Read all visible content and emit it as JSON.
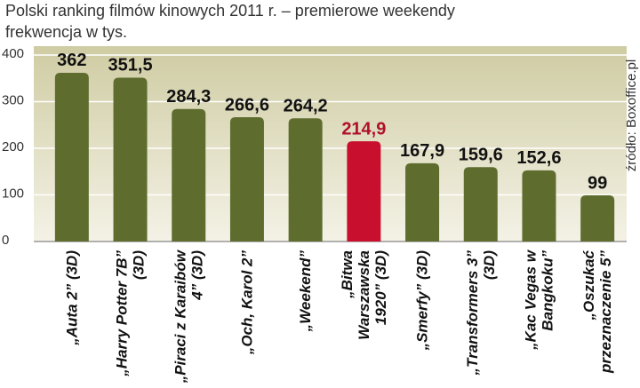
{
  "chart_data": {
    "type": "bar",
    "title": "Polski ranking filmów kinowych 2011 r. – premierowe weekendy",
    "subtitle": "frekwencja w tys.",
    "source": "źródło: Boxoffice.pl",
    "categories": [
      "„Auta 2” (3D)",
      "„Harry Potter 7B” (3D)",
      "„Piraci z Karaibów 4” (3D)",
      "„Och, Karol 2”",
      "„Weekend”",
      "„Bitwa Warszawska 1920” (3D)",
      "„Smerfy” (3D)",
      "„Transformers 3” (3D)",
      "„Kac Vegas w Bangkoku”",
      "„Oszukać przeznaczenie 5”"
    ],
    "values": [
      362,
      351.5,
      284.3,
      266.6,
      264.2,
      214.9,
      167.9,
      159.6,
      152.6,
      99
    ],
    "value_labels": [
      "362",
      "351,5",
      "284,3",
      "266,6",
      "264,2",
      "214,9",
      "167,9",
      "159,6",
      "152,6",
      "99"
    ],
    "colors": [
      "#5e6d2e",
      "#5e6d2e",
      "#5e6d2e",
      "#5e6d2e",
      "#5e6d2e",
      "#c8102e",
      "#5e6d2e",
      "#5e6d2e",
      "#5e6d2e",
      "#5e6d2e"
    ],
    "value_label_colors": [
      "#111111",
      "#111111",
      "#111111",
      "#111111",
      "#111111",
      "#b0102a",
      "#111111",
      "#111111",
      "#111111",
      "#111111"
    ],
    "ylim": [
      0,
      400
    ],
    "yticks": [
      0,
      100,
      200,
      300,
      400
    ],
    "grid": true
  }
}
